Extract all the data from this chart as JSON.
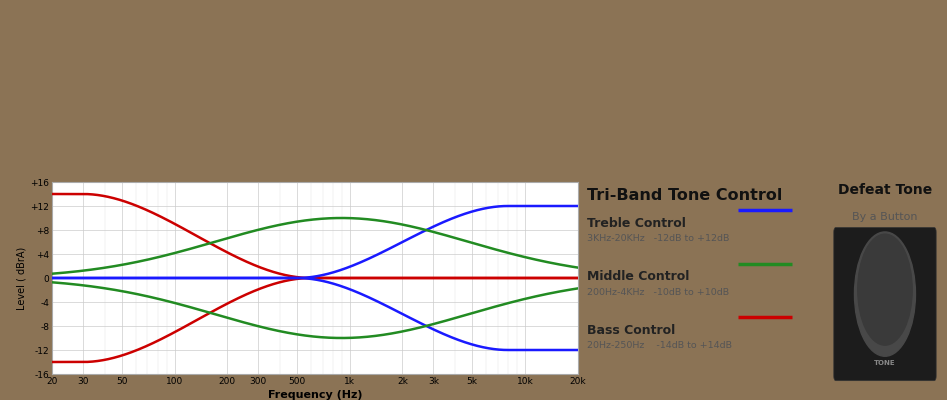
{
  "title": "Tri-Band Tone Control",
  "defeat_title": "Defeat Tone",
  "defeat_subtitle": "By a Button",
  "freq_ticks": [
    20,
    30,
    50,
    100,
    200,
    300,
    500,
    1000,
    2000,
    3000,
    5000,
    10000,
    20000
  ],
  "freq_tick_labels": [
    "20",
    "30",
    "50",
    "100",
    "200",
    "300",
    "500",
    "1k",
    "2k",
    "3k",
    "5k",
    "10k",
    "20k"
  ],
  "ylim": [
    -16,
    16
  ],
  "yticks": [
    -16,
    -12,
    -8,
    -4,
    0,
    4,
    8,
    12,
    16
  ],
  "ytick_labels": [
    "-16",
    "-12",
    "-8",
    "-4",
    "0",
    "+4",
    "+8",
    "+12",
    "+16"
  ],
  "ylabel": "Level ( dBrA)",
  "xlabel": "Frequency (Hz)",
  "treble_color": "#1a1aff",
  "middle_color": "#228b22",
  "bass_color": "#cc0000",
  "bg_color": "#ffffff",
  "grid_color": "#cccccc",
  "photo_bg": "#8b7355",
  "legend_items": [
    {
      "label": "Treble Control",
      "sub": "3KHz-20KHz   ·12dB to +12dB",
      "color": "#1a1aff"
    },
    {
      "label": "Middle Control",
      "sub": "200Hz-4KHz   ·10dB to +10dB",
      "color": "#228b22"
    },
    {
      "label": "Bass Control",
      "sub": "20Hz-250Hz    ·14dB to +14dB",
      "color": "#cc0000"
    }
  ]
}
